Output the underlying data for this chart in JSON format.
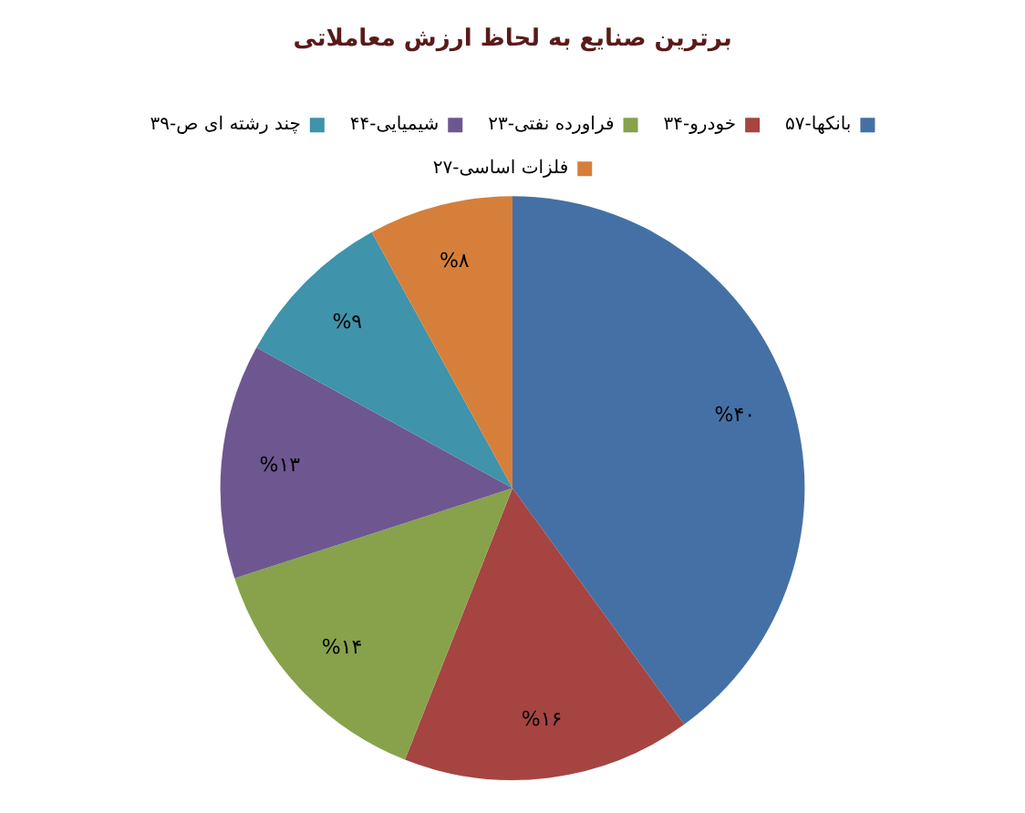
{
  "chart_data": {
    "type": "pie",
    "title": "برترین صنایع به لحاظ ارزش معاملاتی",
    "categories": [
      "بانکها-۵۷",
      "خودرو-۳۴",
      "فراورده نفتی-۲۳",
      "شیمیایی-۴۴",
      "چند رشته ای ص-۳۹",
      "فلزات اساسی-۲۷"
    ],
    "values": [
      40,
      16,
      14,
      13,
      9,
      8
    ],
    "colors": [
      "#4470a6",
      "#a64442",
      "#87a24b",
      "#6e5790",
      "#3f93ab",
      "#d67f3a"
    ],
    "value_labels": [
      "%۴۰",
      "%۱۶",
      "%۱۴",
      "%۱۳",
      "%۹",
      "%۸"
    ],
    "legend": "top"
  }
}
